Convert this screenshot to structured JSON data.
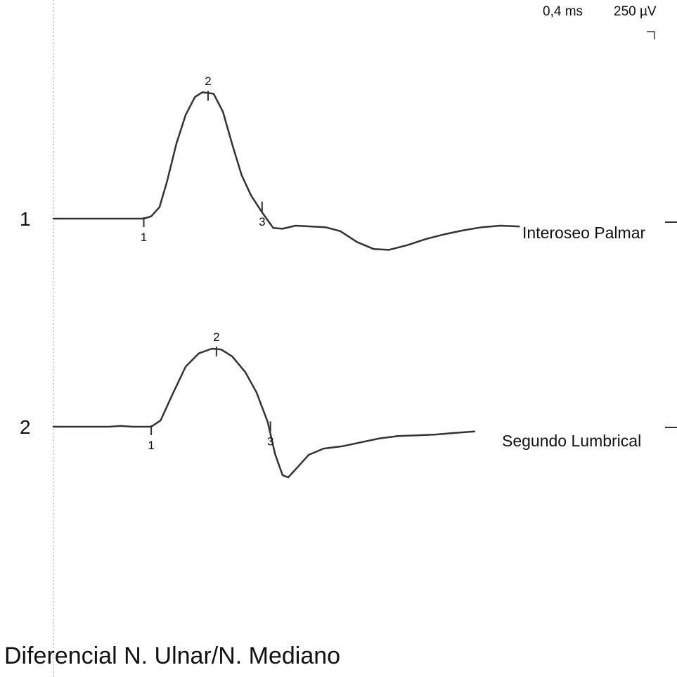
{
  "scale": {
    "time": "0,4 ms",
    "amplitude": "250 µV"
  },
  "footer_title": "Diferencial N. Ulnar/N. Mediano",
  "colors": {
    "trace": "#333333",
    "cursor_line": "#9a9a9a"
  },
  "chart_data": {
    "type": "line",
    "title": "Diferencial N. Ulnar/N. Mediano",
    "x_units": "ms",
    "y_units": "µV",
    "x_per_division": 0.4,
    "y_per_division": 250,
    "grid": false,
    "traces": [
      {
        "number": "1",
        "name": "Interoseo Palmar",
        "markers": [
          {
            "label": "1",
            "x": 0.97,
            "y": 0
          },
          {
            "label": "2",
            "x": 1.66,
            "y": 1620
          },
          {
            "label": "3",
            "x": 2.24,
            "y": 200
          }
        ],
        "points": [
          [
            0,
            0
          ],
          [
            0.97,
            0
          ],
          [
            1.05,
            30
          ],
          [
            1.14,
            150
          ],
          [
            1.22,
            480
          ],
          [
            1.32,
            960
          ],
          [
            1.42,
            1330
          ],
          [
            1.52,
            1560
          ],
          [
            1.6,
            1620
          ],
          [
            1.72,
            1600
          ],
          [
            1.82,
            1370
          ],
          [
            1.92,
            950
          ],
          [
            2.02,
            560
          ],
          [
            2.12,
            300
          ],
          [
            2.24,
            80
          ],
          [
            2.36,
            -120
          ],
          [
            2.46,
            -130
          ],
          [
            2.6,
            -90
          ],
          [
            2.76,
            -100
          ],
          [
            2.92,
            -110
          ],
          [
            3.08,
            -160
          ],
          [
            3.26,
            -300
          ],
          [
            3.44,
            -390
          ],
          [
            3.6,
            -400
          ],
          [
            3.8,
            -340
          ],
          [
            4.0,
            -260
          ],
          [
            4.2,
            -200
          ],
          [
            4.4,
            -150
          ],
          [
            4.6,
            -110
          ],
          [
            4.8,
            -90
          ],
          [
            5.0,
            -100
          ]
        ]
      },
      {
        "number": "2",
        "name": "Segundo Lumbrical",
        "markers": [
          {
            "label": "1",
            "x": 1.05,
            "y": 0
          },
          {
            "label": "2",
            "x": 1.75,
            "y": 1010
          },
          {
            "label": "3",
            "x": 2.33,
            "y": 50
          }
        ],
        "points": [
          [
            0,
            0
          ],
          [
            0.6,
            0
          ],
          [
            0.72,
            10
          ],
          [
            0.85,
            0
          ],
          [
            1.05,
            0
          ],
          [
            1.15,
            80
          ],
          [
            1.28,
            420
          ],
          [
            1.42,
            770
          ],
          [
            1.56,
            940
          ],
          [
            1.7,
            1000
          ],
          [
            1.8,
            990
          ],
          [
            1.92,
            900
          ],
          [
            2.06,
            700
          ],
          [
            2.18,
            440
          ],
          [
            2.3,
            60
          ],
          [
            2.38,
            -350
          ],
          [
            2.46,
            -620
          ],
          [
            2.52,
            -650
          ],
          [
            2.62,
            -520
          ],
          [
            2.74,
            -360
          ],
          [
            2.9,
            -280
          ],
          [
            3.1,
            -250
          ],
          [
            3.3,
            -200
          ],
          [
            3.5,
            -150
          ],
          [
            3.7,
            -120
          ],
          [
            3.9,
            -110
          ],
          [
            4.1,
            -100
          ],
          [
            4.3,
            -80
          ],
          [
            4.52,
            -60
          ]
        ]
      }
    ]
  }
}
